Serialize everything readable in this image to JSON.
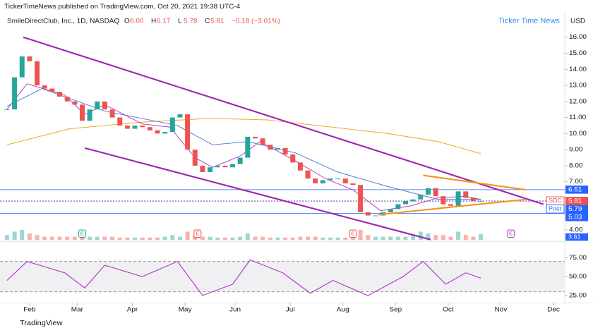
{
  "header": {
    "publisher": "TickerTimeNews published on TradingView.com, Oct 20, 2021 19:38 UTC-4",
    "symbol": "SmileDirectClub, Inc., 1D, NASDAQ",
    "ohlc": [
      {
        "label": "O",
        "value": "6.00"
      },
      {
        "label": "H",
        "value": "6.17"
      },
      {
        "label": "L",
        "value": "5.78"
      },
      {
        "label": "C",
        "value": "5.81"
      }
    ],
    "change": "−0.18 (−3.01%)",
    "watermark": "Ticker Time News",
    "currency": "USD",
    "footer": "TradingView"
  },
  "chart_data": {
    "type": "candlestick",
    "x": [
      0,
      3,
      6,
      9,
      12,
      15,
      18,
      21,
      24,
      27,
      30,
      33,
      36,
      39,
      42,
      45,
      48,
      51,
      54,
      57,
      60,
      63,
      66,
      69,
      72,
      75,
      78,
      81,
      84,
      87,
      90,
      93,
      96,
      99,
      102,
      105,
      108,
      111,
      114,
      117,
      120,
      123,
      126,
      129,
      132,
      135,
      138,
      141,
      144,
      147,
      150,
      153,
      156,
      159,
      162,
      165,
      168,
      171,
      174,
      177,
      180,
      183,
      186,
      189
    ],
    "close": [
      11.5,
      13.5,
      14.8,
      14.5,
      13.0,
      12.8,
      12.6,
      12.3,
      12.0,
      11.8,
      10.8,
      11.5,
      12.0,
      11.5,
      11.0,
      10.5,
      10.3,
      10.5,
      10.4,
      10.2,
      10.0,
      10.1,
      11.0,
      11.2,
      9.0,
      8.0,
      7.6,
      7.9,
      8.0,
      7.9,
      8.1,
      8.5,
      9.8,
      9.7,
      9.3,
      9.0,
      9.1,
      8.7,
      8.2,
      7.7,
      7.2,
      6.9,
      7.1,
      7.2,
      7.2,
      6.9,
      6.8,
      5.1,
      4.9,
      4.9,
      5.1,
      5.3,
      5.6,
      5.8,
      5.9,
      6.2,
      6.6,
      6.1,
      5.6,
      5.5,
      6.4,
      6.0,
      5.8,
      5.81
    ],
    "volume": [
      3,
      5,
      6,
      4,
      3,
      2,
      2,
      2,
      2,
      2,
      4,
      2,
      2,
      2,
      2,
      1.5,
      1.5,
      1.5,
      1.5,
      1.5,
      1.5,
      2,
      3,
      2,
      5,
      3,
      2,
      2,
      1.5,
      1.5,
      1.5,
      2,
      4,
      2,
      2,
      1.5,
      1.5,
      1.5,
      1.5,
      2,
      2,
      2,
      1.5,
      1.5,
      1.5,
      1.5,
      2,
      6,
      3,
      2,
      2,
      2,
      2,
      2,
      3,
      5,
      4,
      3,
      3,
      2,
      5,
      3,
      2,
      3.61
    ],
    "volume_label": "3.61",
    "up_color": "#26a69a",
    "down_color": "#ef5350",
    "xlim": [
      -2.8,
      222.5
    ],
    "xticks": [
      {
        "value": 9,
        "label": "Feb"
      },
      {
        "value": 28,
        "label": "Mar"
      },
      {
        "value": 50,
        "label": "Apr"
      },
      {
        "value": 71,
        "label": "May"
      },
      {
        "value": 91,
        "label": "Jun"
      },
      {
        "value": 113,
        "label": "Jul"
      },
      {
        "value": 134,
        "label": "Aug"
      },
      {
        "value": 155,
        "label": "Sep"
      },
      {
        "value": 176,
        "label": "Oct"
      },
      {
        "value": 197,
        "label": "Nov"
      },
      {
        "value": 218,
        "label": "Dec"
      }
    ],
    "ylim": [
      3.37,
      16.63
    ],
    "yticks": [
      {
        "value": 16,
        "label": "16.00"
      },
      {
        "value": 15,
        "label": "15.00"
      },
      {
        "value": 14,
        "label": "14.00"
      },
      {
        "value": 13,
        "label": "13.00"
      },
      {
        "value": 12,
        "label": "12.00"
      },
      {
        "value": 11,
        "label": "11.00"
      },
      {
        "value": 10,
        "label": "10.00"
      },
      {
        "value": 9,
        "label": "9.00"
      },
      {
        "value": 8,
        "label": "8.00"
      },
      {
        "value": 7,
        "label": "7.00"
      },
      {
        "value": 4,
        "label": "4.00"
      }
    ],
    "overlays": [
      {
        "color": "#f7a21b",
        "x": [
          0,
          25,
          53,
          81,
          104,
          124,
          152,
          172,
          189
        ],
        "values": [
          9.3,
          10.3,
          10.7,
          10.95,
          10.85,
          10.5,
          10.0,
          9.5,
          8.75
        ]
      },
      {
        "color": "#4a7bd8",
        "x": [
          0,
          14,
          39,
          68,
          82,
          96,
          115,
          132,
          152,
          172,
          189
        ],
        "values": [
          11.7,
          12.8,
          11.4,
          10.5,
          9.3,
          9.5,
          8.8,
          7.6,
          6.7,
          5.9,
          5.9
        ]
      },
      {
        "color": "#b43cc4",
        "x": [
          0,
          8,
          23,
          31,
          39,
          54,
          65,
          75,
          82,
          93,
          101,
          115,
          127,
          138,
          149,
          161,
          172,
          183,
          189
        ],
        "values": [
          11.5,
          13.1,
          12.4,
          11.2,
          11.8,
          10.6,
          10.4,
          8.5,
          7.9,
          8.6,
          9.5,
          8.3,
          7.2,
          6.5,
          5.2,
          5.5,
          6.0,
          6.1,
          5.9
        ]
      }
    ],
    "drawings": [
      {
        "color": "#9c27b0",
        "x": [
          6.5,
          214
        ],
        "y": [
          16.0,
          5.6
        ]
      },
      {
        "color": "#9c27b0",
        "x": [
          31,
          169
        ],
        "y": [
          9.1,
          3.4
        ]
      },
      {
        "color": "#f7931a",
        "x": [
          166,
          207
        ],
        "y": [
          7.4,
          6.5
        ]
      },
      {
        "color": "#f7931a",
        "x": [
          148,
          207
        ],
        "y": [
          4.95,
          5.9
        ]
      }
    ],
    "levels": [
      {
        "value": 6.51,
        "label": "6.51",
        "color": "#2962ff"
      },
      {
        "value": 5.81,
        "label": "5.81",
        "tag": "SDC",
        "color": "#ef5350"
      },
      {
        "value": 5.79,
        "label": "5.79",
        "tag": "Post",
        "color": "#2962ff"
      },
      {
        "value": 5.03,
        "label": "5.03",
        "color": "#2962ff"
      }
    ],
    "events": [
      {
        "x": 30,
        "label": "E",
        "color": "#26a69a"
      },
      {
        "x": 76,
        "label": "E",
        "color": "#ef5350"
      },
      {
        "x": 138,
        "label": "E",
        "color": "#ef5350"
      },
      {
        "x": 201,
        "label": "E",
        "color": "#b43cc4"
      }
    ],
    "rsi": {
      "x": [
        0,
        8,
        23,
        31,
        39,
        54,
        68,
        78,
        90,
        97,
        110,
        121,
        130,
        144,
        158,
        166,
        175,
        183,
        189
      ],
      "values": [
        45,
        70,
        55,
        35,
        65,
        50,
        70,
        25,
        40,
        72,
        55,
        28,
        45,
        25,
        50,
        70,
        40,
        55,
        48
      ],
      "color": "#b43cc4",
      "ylim": [
        17.86,
        93.75
      ],
      "yticks": [
        {
          "value": 75,
          "label": "75.00"
        },
        {
          "value": 50,
          "label": "50.00"
        },
        {
          "value": 25,
          "label": "25.00"
        }
      ],
      "bands": [
        70,
        30
      ]
    }
  }
}
